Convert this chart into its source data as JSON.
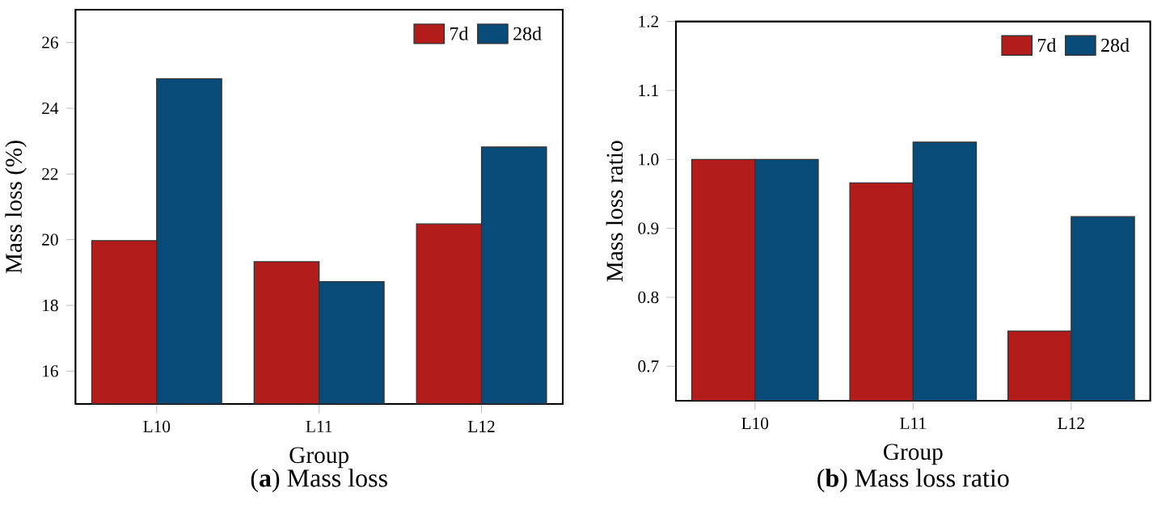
{
  "chart_data": [
    {
      "type": "bar",
      "title": "(**a**) Mass loss",
      "xlabel": "Group",
      "ylabel": "Mass loss (%)",
      "categories": [
        "L10",
        "L11",
        "L12"
      ],
      "series": [
        {
          "name": "7d",
          "color": "#b21c1a",
          "values": [
            19.97,
            19.33,
            20.48
          ]
        },
        {
          "name": "28d",
          "color": "#084b78",
          "values": [
            24.9,
            18.72,
            22.82
          ]
        }
      ],
      "ylim": [
        15,
        27
      ],
      "yticks": [
        16,
        18,
        20,
        22,
        24,
        26
      ],
      "legend": "top right"
    },
    {
      "type": "bar",
      "title": "(**b**) Mass loss ratio",
      "xlabel": "Group",
      "ylabel": "Mass loss ratio",
      "categories": [
        "L10",
        "L11",
        "L12"
      ],
      "series": [
        {
          "name": "7d",
          "color": "#b21c1a",
          "values": [
            1.0,
            0.966,
            0.751
          ]
        },
        {
          "name": "28d",
          "color": "#084b78",
          "values": [
            1.0,
            1.025,
            0.917
          ]
        }
      ],
      "ylim": [
        0.65,
        1.2
      ],
      "yticks": [
        0.7,
        0.8,
        0.9,
        {
          "value": 1.0,
          "label": "1.0"
        },
        1.1,
        1.2
      ],
      "legend": "top right"
    }
  ]
}
